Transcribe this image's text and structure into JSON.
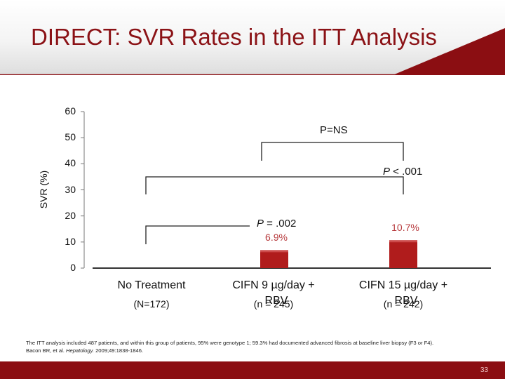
{
  "slide": {
    "title": "DIRECT: SVR Rates in the ITT Analysis",
    "footnote_line1": "The ITT analysis included 487 patients, and within this group of patients, 95% were genotype 1; 59.3% had documented advanced fibrosis at baseline liver biopsy (F3 or F4).",
    "footnote_line2_prefix": "Bacon BR, et al. ",
    "footnote_journal": "Hepatology.",
    "footnote_line2_suffix": " 2009;49:1838-1846.",
    "page_number": "33",
    "colors": {
      "brand": "#8b0e12",
      "bar": "#b01c1c",
      "data_label": "#b73a3d"
    }
  },
  "chart_data": {
    "type": "bar",
    "ylabel": "SVR (%)",
    "ylim": [
      0,
      60
    ],
    "yticks": [
      "0",
      "10",
      "20",
      "30",
      "40",
      "50",
      "60"
    ],
    "categories": [
      {
        "name": "No Treatment",
        "sub": "(N=172)"
      },
      {
        "name": "CIFN 9 µg/day +",
        "sub": "(n = 245)",
        "overlay": "RBV"
      },
      {
        "name": "CIFN 15 µg/day +",
        "sub": "(n = 242)",
        "overlay": "RBV"
      }
    ],
    "values": [
      0,
      6.9,
      10.7
    ],
    "data_labels": [
      "",
      "6.9%",
      "10.7%"
    ],
    "comparisons": [
      {
        "pair": [
          1,
          2
        ],
        "label": "P=NS"
      },
      {
        "pair": [
          0,
          2
        ],
        "label_italic": "P",
        "label_rest": " < .001"
      },
      {
        "pair": [
          0,
          1
        ],
        "label_italic": "P",
        "label_rest": " = .002"
      }
    ]
  }
}
